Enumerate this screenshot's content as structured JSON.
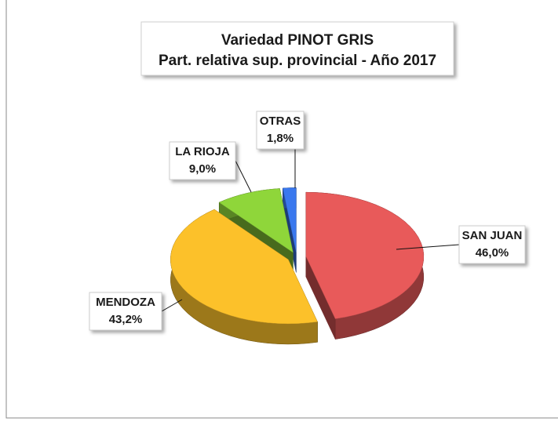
{
  "chart_data": {
    "type": "pie3d",
    "title": "Variedad PINOT GRIS",
    "subtitle": "Part. relativa sup. provincial - Año 2017",
    "categories": [
      "SAN JUAN",
      "MENDOZA",
      "LA RIOJA",
      "OTRAS"
    ],
    "values": [
      46.0,
      43.2,
      9.0,
      1.8
    ],
    "value_labels": [
      "46,0%",
      "43,2%",
      "9,0%",
      "1,8%"
    ],
    "colors": [
      "#e85a5a",
      "#fcc12a",
      "#8fd63a",
      "#3a78ee"
    ]
  }
}
